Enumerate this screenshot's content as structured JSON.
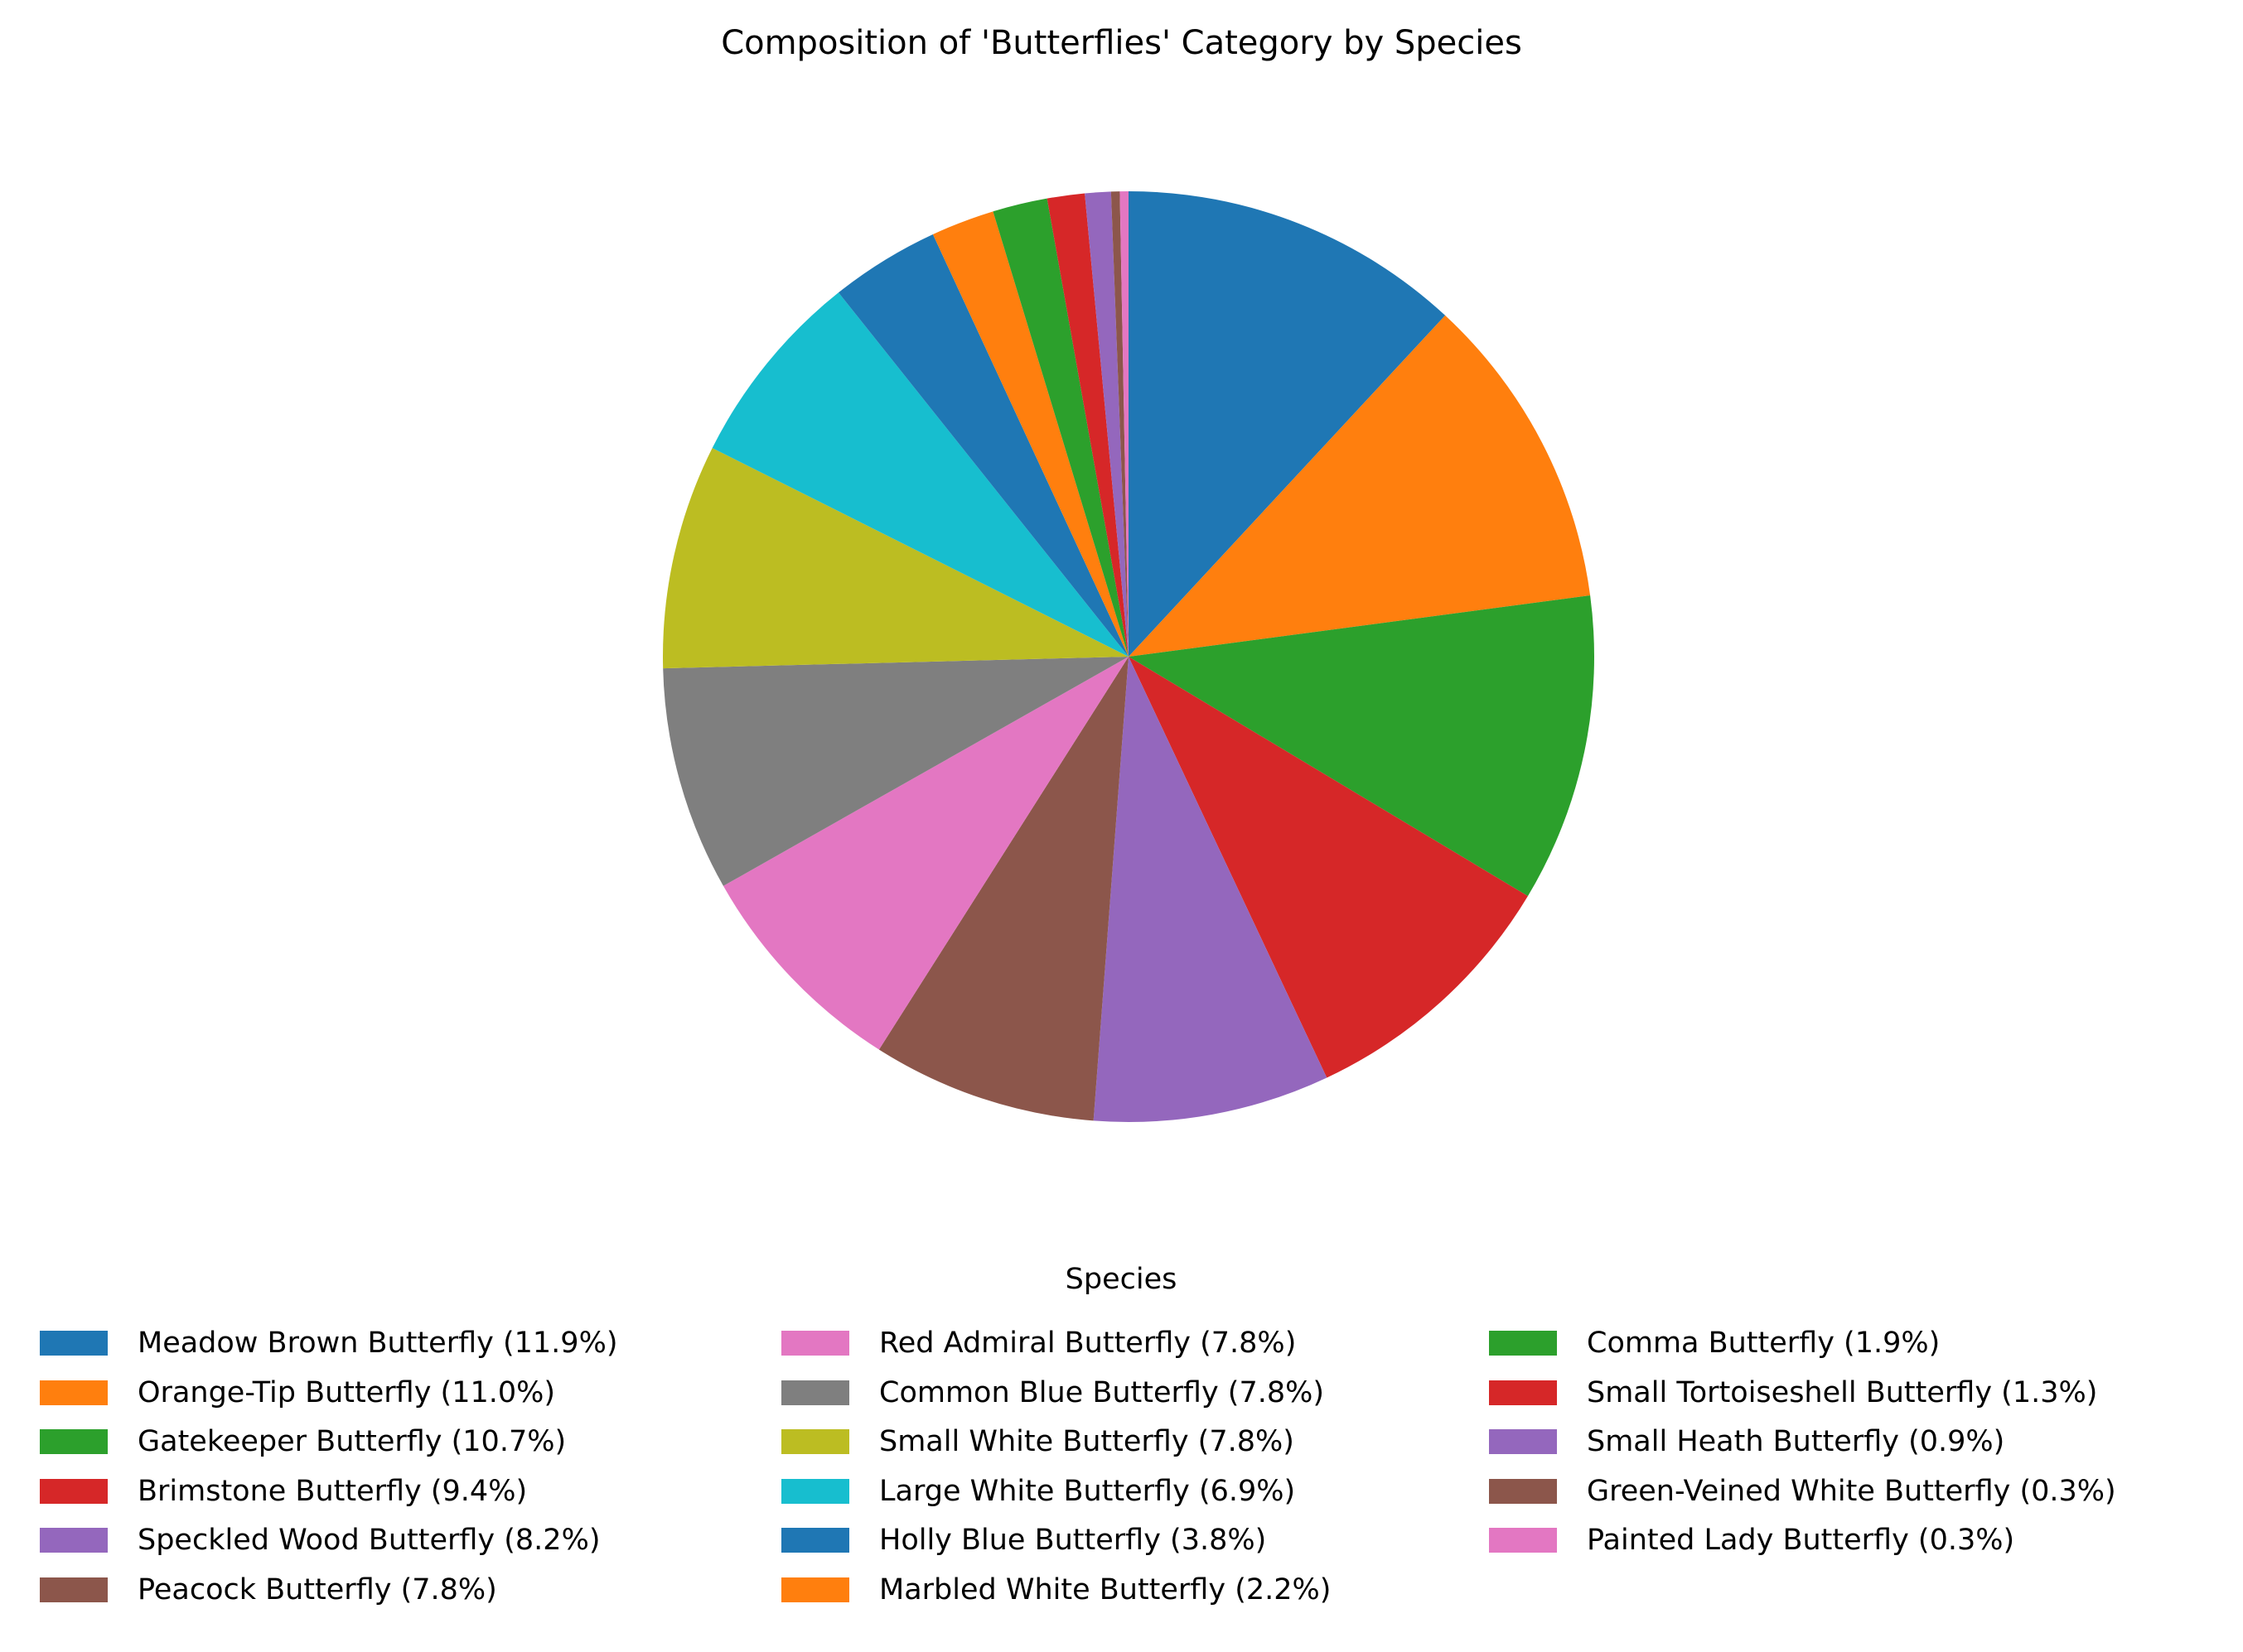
{
  "chart_data": {
    "type": "pie",
    "title": "Composition of 'Butterflies' Category by Species",
    "legend_title": "Species",
    "legend_position": "bottom",
    "start_angle_deg": 90,
    "direction": "clockwise",
    "slices": [
      {
        "label": "Meadow Brown Butterfly (11.9%)",
        "value": 11.9,
        "color": "#1f77b4"
      },
      {
        "label": "Orange-Tip Butterfly (11.0%)",
        "value": 11.0,
        "color": "#ff7f0e"
      },
      {
        "label": "Gatekeeper Butterfly (10.7%)",
        "value": 10.7,
        "color": "#2ca02c"
      },
      {
        "label": "Brimstone Butterfly (9.4%)",
        "value": 9.4,
        "color": "#d62728"
      },
      {
        "label": "Speckled Wood Butterfly (8.2%)",
        "value": 8.2,
        "color": "#9467bd"
      },
      {
        "label": "Peacock Butterfly (7.8%)",
        "value": 7.8,
        "color": "#8c564b"
      },
      {
        "label": "Red Admiral Butterfly (7.8%)",
        "value": 7.8,
        "color": "#e377c2"
      },
      {
        "label": "Common Blue Butterfly (7.8%)",
        "value": 7.8,
        "color": "#7f7f7f"
      },
      {
        "label": "Small White Butterfly (7.8%)",
        "value": 7.8,
        "color": "#bcbd22"
      },
      {
        "label": "Large White Butterfly (6.9%)",
        "value": 6.9,
        "color": "#17becf"
      },
      {
        "label": "Holly Blue Butterfly (3.8%)",
        "value": 3.8,
        "color": "#1f77b4"
      },
      {
        "label": "Marbled White Butterfly (2.2%)",
        "value": 2.2,
        "color": "#ff7f0e"
      },
      {
        "label": "Comma Butterfly (1.9%)",
        "value": 1.9,
        "color": "#2ca02c"
      },
      {
        "label": "Small Tortoiseshell Butterfly (1.3%)",
        "value": 1.3,
        "color": "#d62728"
      },
      {
        "label": "Small Heath Butterfly (0.9%)",
        "value": 0.9,
        "color": "#9467bd"
      },
      {
        "label": "Green-Veined White Butterfly (0.3%)",
        "value": 0.3,
        "color": "#8c564b"
      },
      {
        "label": "Painted Lady Butterfly (0.3%)",
        "value": 0.3,
        "color": "#e377c2"
      }
    ]
  }
}
